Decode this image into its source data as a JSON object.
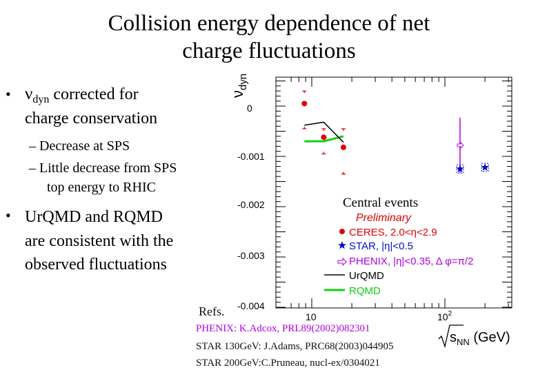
{
  "slide": {
    "title_line1": "Collision energy dependence of net",
    "title_line2": "charge fluctuations",
    "bullet1_symbol": "ν",
    "bullet1_sub": "dyn",
    "bullet1_rest": " corrected for",
    "bullet1_line2": "charge conservation",
    "sub1": "– Decrease at SPS",
    "sub2": "– Little decrease from SPS",
    "sub2_line2": "top energy to RHIC",
    "bullet2_line1": "UrQMD and RQMD",
    "bullet2_line2": "are consistent with the",
    "bullet2_line3": "observed fluctuations",
    "refs_label": "Refs.",
    "ref1": "PHENIX: K.Adcox, PRL89(2002)082301",
    "ref2": "STAR 130GeV: J.Adams, PRC68(2003)044905",
    "ref3": "STAR 200GeV:C.Pruneau, nucl-ex/0304021"
  },
  "colors": {
    "ceres": "#e00000",
    "star": "#0010c0",
    "phenix": "#b000e0",
    "urqmd": "#000000",
    "rqmd": "#10d010",
    "preliminary": "#e00000"
  },
  "chart_data": {
    "type": "scatter",
    "ylabel_main": "ν",
    "ylabel_sub": "dyn",
    "xlabel_pre": "s",
    "xlabel_sub": "NN",
    "xlabel_post": " (GeV)",
    "yticks": [
      "0",
      "-0.001",
      "-0.002",
      "-0.003",
      "-0.004"
    ],
    "xticks": [
      "10",
      "10"
    ],
    "xtick2_sup": "2",
    "xscale": "log",
    "xlim": [
      6,
      300
    ],
    "ylim": [
      -0.0042,
      0.0007
    ],
    "annotation": "Central events",
    "legend_preliminary": "Preliminary",
    "legend": [
      {
        "label": "CERES, 2.0<η<2.9",
        "marker": "circle",
        "color": "#e00000"
      },
      {
        "label": "STAR, |η|<0.5",
        "marker": "star",
        "color": "#0010c0"
      },
      {
        "label": "PHENIX, |η|<0.35, Δ φ=π/2",
        "marker": "open-arrow",
        "color": "#b000e0"
      },
      {
        "label": "UrQMD",
        "marker": "line",
        "color": "#000000"
      },
      {
        "label": "RQMD",
        "marker": "line",
        "color": "#10d010"
      }
    ],
    "series": [
      {
        "name": "CERES, 2.0<η<2.9",
        "x": [
          8.8,
          12.3,
          17.3
        ],
        "y": [
          5e-05,
          -0.00062,
          -0.00082
        ],
        "sys_upper": [
          0.0003,
          -0.00045,
          -0.00045
        ],
        "sys_lower": [
          -0.00045,
          -0.00095,
          -0.00135
        ]
      },
      {
        "name": "STAR, |η|<0.5",
        "x": [
          130,
          200
        ],
        "y": [
          -0.00125,
          -0.00122
        ]
      },
      {
        "name": "PHENIX, |η|<0.35, Δ φ=π/2",
        "x": [
          130
        ],
        "y": [
          -0.00078
        ],
        "err": [
          0.00055
        ]
      },
      {
        "name": "UrQMD",
        "x": [
          8.8,
          12.3,
          17.3
        ],
        "y": [
          -0.00038,
          -0.00032,
          -0.00072
        ]
      },
      {
        "name": "RQMD",
        "x": [
          8.8,
          12.3,
          17.3
        ],
        "y": [
          -0.0007,
          -0.0007,
          -0.0006
        ]
      }
    ]
  }
}
